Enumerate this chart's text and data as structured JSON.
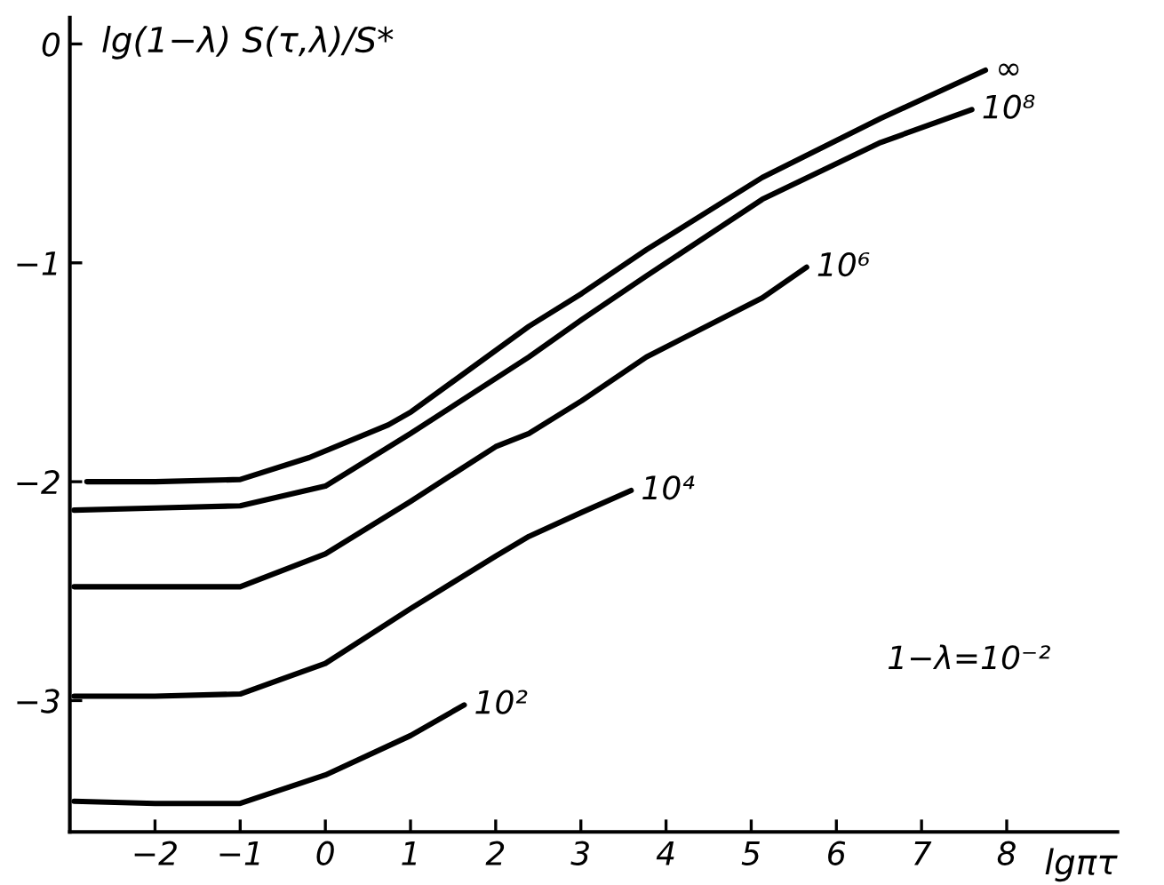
{
  "chart_data": {
    "type": "line",
    "xlabel": "lgπτ",
    "ylabel": "lg(1−λ) S(τ,λ)/S*",
    "xlim": [
      -3.0,
      9.3
    ],
    "ylim": [
      -3.6,
      0.12
    ],
    "xticks": [
      -2,
      -1,
      0,
      1,
      2,
      3,
      4,
      5,
      6,
      7,
      8
    ],
    "yticks": [
      -3,
      -2,
      -1,
      0
    ],
    "grid": false,
    "legend": false,
    "marker": "none",
    "line_style": "solid",
    "annotations": [
      "1−λ=10⁻²"
    ],
    "series": [
      {
        "name": "∞",
        "color": "#000000",
        "x": [
          -2.8,
          -2,
          -1,
          -0.19,
          0.74,
          1.01,
          2.39,
          3.01,
          3.77,
          5.13,
          6.52,
          7.75
        ],
        "values": [
          -2.0,
          -2.0,
          -1.99,
          -1.89,
          -1.74,
          -1.68,
          -1.29,
          -1.14,
          -0.94,
          -0.61,
          -0.34,
          -0.12
        ]
      },
      {
        "name": "10⁸",
        "color": "#000000",
        "x": [
          -2.95,
          -2,
          -1,
          0,
          1,
          2.39,
          3.01,
          3.77,
          5.13,
          6.52,
          7.59
        ],
        "values": [
          -2.13,
          -2.12,
          -2.11,
          -2.02,
          -1.78,
          -1.43,
          -1.26,
          -1.06,
          -0.71,
          -0.45,
          -0.3
        ]
      },
      {
        "name": "10⁶",
        "color": "#000000",
        "x": [
          -2.95,
          -2,
          -1,
          0,
          1,
          2,
          2.39,
          3.01,
          3.77,
          5.13,
          5.65
        ],
        "values": [
          -2.48,
          -2.48,
          -2.48,
          -2.33,
          -2.09,
          -1.84,
          -1.78,
          -1.63,
          -1.43,
          -1.16,
          -1.02
        ]
      },
      {
        "name": "10⁴",
        "color": "#000000",
        "x": [
          -2.95,
          -2,
          -1,
          0,
          1,
          2,
          2.39,
          3.01,
          3.59
        ],
        "values": [
          -2.98,
          -2.98,
          -2.97,
          -2.83,
          -2.58,
          -2.34,
          -2.25,
          -2.14,
          -2.04
        ]
      },
      {
        "name": "10²",
        "color": "#000000",
        "x": [
          -2.95,
          -2,
          -1,
          0,
          1,
          1.63
        ],
        "values": [
          -3.46,
          -3.47,
          -3.47,
          -3.34,
          -3.16,
          -3.02
        ]
      }
    ]
  }
}
